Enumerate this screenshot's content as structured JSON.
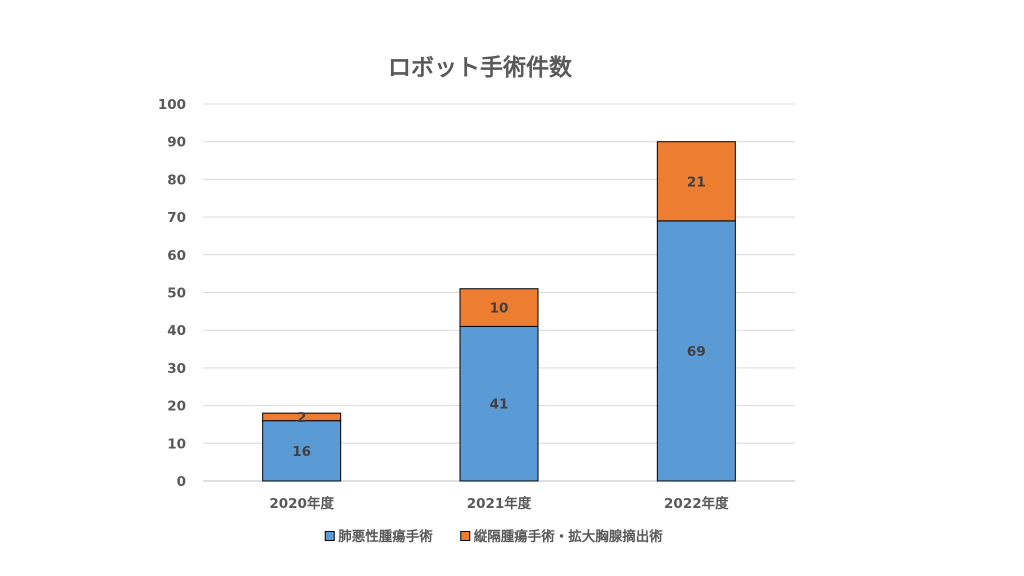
{
  "chart_data": {
    "type": "bar",
    "stacked": true,
    "title": "ロボット手術件数",
    "xlabel": "",
    "ylabel": "",
    "categories": [
      "2020年度",
      "2021年度",
      "2022年度"
    ],
    "series": [
      {
        "name": "肺悪性腫瘍手術",
        "values": [
          16,
          41,
          69
        ],
        "color": "#5b9bd5"
      },
      {
        "name": "縦隔腫瘍手術・拡大胸腺摘出術",
        "values": [
          2,
          10,
          21
        ],
        "color": "#ed7d31"
      }
    ],
    "ylim": [
      0,
      100
    ],
    "yticks": [
      0,
      10,
      20,
      30,
      40,
      50,
      60,
      70,
      80,
      90,
      100
    ],
    "grid": true,
    "legend_position": "bottom"
  }
}
